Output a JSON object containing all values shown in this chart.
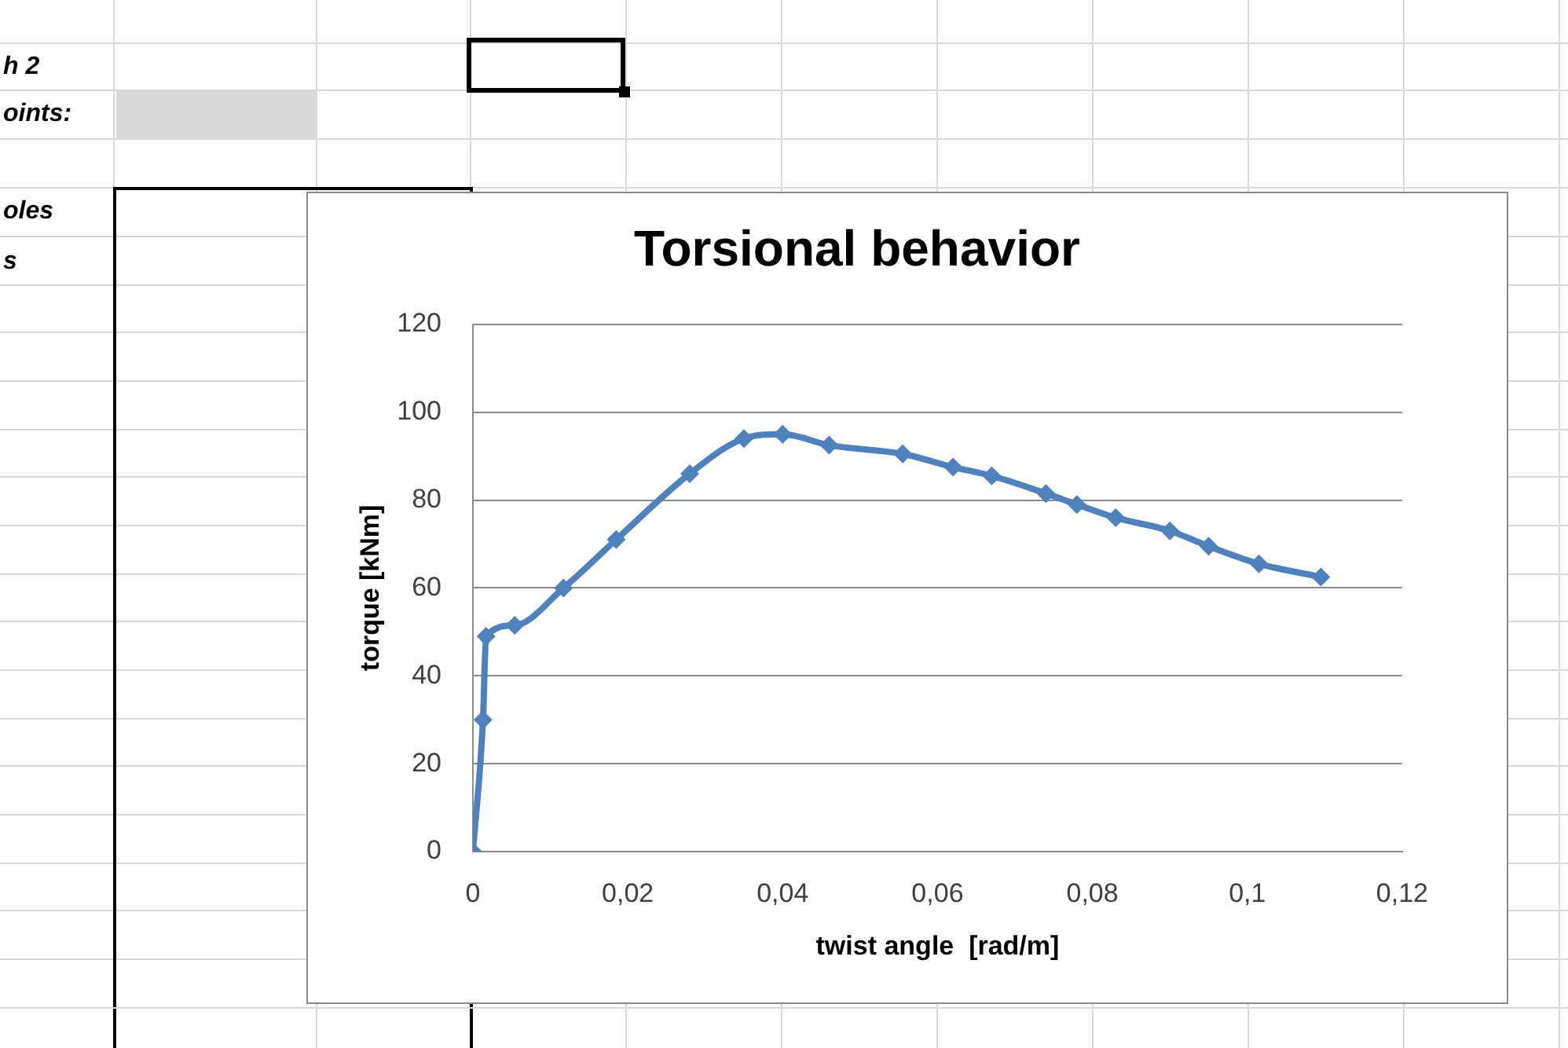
{
  "chart_data": {
    "type": "line",
    "title": "Torsional behavior",
    "xlabel": "twist angle  [rad/m]",
    "ylabel": "torque [kNm]",
    "annotations": [
      "h 2",
      "oints:",
      "oles",
      "s"
    ],
    "x": [
      0,
      0.0013,
      0.0017,
      0.0054,
      0.0117,
      0.0185,
      0.028,
      0.035,
      0.04,
      0.046,
      0.0555,
      0.062,
      0.067,
      0.074,
      0.078,
      0.083,
      0.09,
      0.095,
      0.1015,
      0.1095
    ],
    "series": [
      {
        "color": "#4f81bd",
        "values": [
          0,
          30,
          49,
          51.5,
          60,
          71,
          86,
          94,
          95,
          92.5,
          90.5,
          87.5,
          85.5,
          81.5,
          79,
          76,
          73,
          69.5,
          65.5,
          62.5
        ]
      }
    ],
    "xlim": [
      0,
      0.12
    ],
    "xticks": [
      0,
      {
        "value": 0.02,
        "label": "0,02"
      },
      {
        "value": 0.04,
        "label": "0,04"
      },
      {
        "value": 0.06,
        "label": "0,06"
      },
      {
        "value": 0.08,
        "label": "0,08"
      },
      {
        "value": 0.1,
        "label": "0,1"
      },
      {
        "value": 0.12,
        "label": "0,12"
      }
    ],
    "ylim": [
      0,
      120
    ],
    "yticks": [
      0,
      20,
      40,
      60,
      80,
      100,
      120
    ],
    "grid": "y",
    "legend": false,
    "marker": "diamond",
    "line_style": "solid"
  }
}
